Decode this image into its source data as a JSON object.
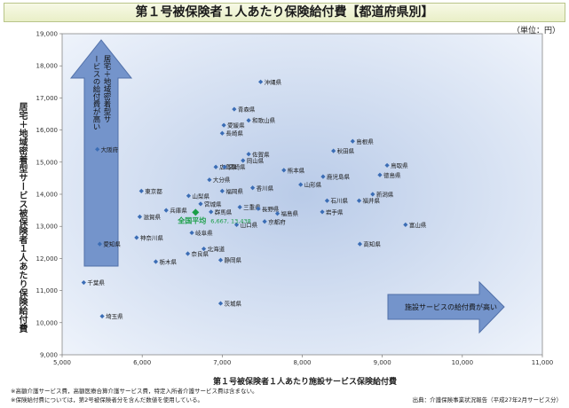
{
  "title": "第１号被保険者１人あたり保険給付費【都道府県別】",
  "unit": "（単位：円）",
  "footnotes": [
    "※高額介護サービス費，高額医療合算介護サービス費，特定入所者介護サービス費は含まない。",
    "※保険給付費については，第2号被保険者分を含んだ数値を使用している。"
  ],
  "source": "出典：介護保険事業状況報告（平成27年2月サービス分）",
  "colors": {
    "plot_bg_center": "#b9cbe8",
    "plot_bg_edge": "#eef3fb",
    "marker": "#3b6db5",
    "average": "#1a9e47",
    "arrow": "#6d8fc9"
  },
  "chart_data": {
    "type": "scatter",
    "xlabel": "第１号被保険者１人あたり施設サービス保険給付費",
    "ylabel": "居宅＋地域密着型サービス被保険者１人あたり保険給付費",
    "xlim": [
      5000,
      11000
    ],
    "ylim": [
      9000,
      19000
    ],
    "x_ticks": [
      "5,000",
      "6,000",
      "7,000",
      "8,000",
      "9,000",
      "10,000",
      "11,000"
    ],
    "y_ticks": [
      "9,000",
      "10,000",
      "11,000",
      "12,000",
      "13,000",
      "14,000",
      "15,000",
      "16,000",
      "17,000",
      "18,000",
      "19,000"
    ],
    "grid": false,
    "annotations": {
      "up_arrow": "居宅＋地域密着型サービスの給付費が高い",
      "right_arrow": "施設サービスの給付費が高い"
    },
    "average": {
      "label": "全国平均",
      "x": 6667,
      "y": 13438,
      "value_text": "6,667, 13,438"
    },
    "points": [
      {
        "name": "沖縄県",
        "x": 7480,
        "y": 17500
      },
      {
        "name": "青森県",
        "x": 7150,
        "y": 16650
      },
      {
        "name": "和歌山県",
        "x": 7330,
        "y": 16300
      },
      {
        "name": "愛媛県",
        "x": 7020,
        "y": 16150
      },
      {
        "name": "長崎県",
        "x": 7000,
        "y": 15900
      },
      {
        "name": "島根県",
        "x": 8630,
        "y": 15650
      },
      {
        "name": "大阪府",
        "x": 5440,
        "y": 15400
      },
      {
        "name": "秋田県",
        "x": 8390,
        "y": 15350
      },
      {
        "name": "佐賀県",
        "x": 7330,
        "y": 15250
      },
      {
        "name": "岡山県",
        "x": 7260,
        "y": 15050
      },
      {
        "name": "広島県",
        "x": 6920,
        "y": 14850
      },
      {
        "name": "宮崎県",
        "x": 7030,
        "y": 14850
      },
      {
        "name": "鳥取県",
        "x": 9060,
        "y": 14900
      },
      {
        "name": "熊本県",
        "x": 7770,
        "y": 14750
      },
      {
        "name": "徳島県",
        "x": 8970,
        "y": 14600
      },
      {
        "name": "鹿児島県",
        "x": 8260,
        "y": 14550
      },
      {
        "name": "大分県",
        "x": 6840,
        "y": 14450
      },
      {
        "name": "山形県",
        "x": 7980,
        "y": 14300
      },
      {
        "name": "香川県",
        "x": 7380,
        "y": 14200
      },
      {
        "name": "福岡県",
        "x": 7000,
        "y": 14100
      },
      {
        "name": "東京都",
        "x": 5990,
        "y": 14100
      },
      {
        "name": "新潟県",
        "x": 8880,
        "y": 14000
      },
      {
        "name": "山梨県",
        "x": 6580,
        "y": 13950
      },
      {
        "name": "石川県",
        "x": 8310,
        "y": 13800
      },
      {
        "name": "福井県",
        "x": 8710,
        "y": 13800
      },
      {
        "name": "宮城県",
        "x": 6730,
        "y": 13700
      },
      {
        "name": "三重県",
        "x": 7220,
        "y": 13600
      },
      {
        "name": "長野県",
        "x": 7450,
        "y": 13550
      },
      {
        "name": "兵庫県",
        "x": 6300,
        "y": 13500
      },
      {
        "name": "群馬県",
        "x": 6860,
        "y": 13450
      },
      {
        "name": "福島県",
        "x": 7690,
        "y": 13400
      },
      {
        "name": "岩手県",
        "x": 8250,
        "y": 13450
      },
      {
        "name": "滋賀県",
        "x": 5970,
        "y": 13300
      },
      {
        "name": "京都府",
        "x": 7530,
        "y": 13150
      },
      {
        "name": "山口県",
        "x": 7180,
        "y": 13050
      },
      {
        "name": "富山県",
        "x": 9290,
        "y": 13050
      },
      {
        "name": "岐阜県",
        "x": 6620,
        "y": 12800
      },
      {
        "name": "神奈川県",
        "x": 5930,
        "y": 12650
      },
      {
        "name": "愛知県",
        "x": 5470,
        "y": 12450
      },
      {
        "name": "高知県",
        "x": 8720,
        "y": 12450
      },
      {
        "name": "北海道",
        "x": 6770,
        "y": 12300
      },
      {
        "name": "奈良県",
        "x": 6570,
        "y": 12150
      },
      {
        "name": "静岡県",
        "x": 6980,
        "y": 11950
      },
      {
        "name": "栃木県",
        "x": 6170,
        "y": 11900
      },
      {
        "name": "千葉県",
        "x": 5270,
        "y": 11250
      },
      {
        "name": "茨城県",
        "x": 6980,
        "y": 10600
      },
      {
        "name": "埼玉県",
        "x": 5500,
        "y": 10200
      }
    ]
  }
}
